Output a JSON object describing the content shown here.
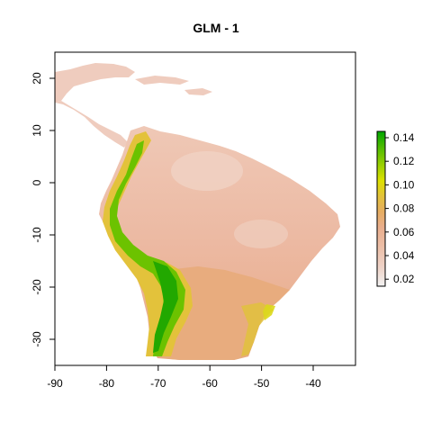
{
  "title": "GLM -  1",
  "map": {
    "x_ticks": [
      "-90",
      "-80",
      "-70",
      "-60",
      "-50",
      "-40"
    ],
    "y_ticks": [
      "20",
      "10",
      "0",
      "-10",
      "-20",
      "-30"
    ],
    "xlim": [
      -90,
      -32
    ],
    "ylim": [
      -35,
      25
    ],
    "background": "#ffffff",
    "ocean": "white",
    "land_low_color": "#ecb9a2",
    "land_mid_color": "#ebb089",
    "land_high_color": "#1fa800"
  },
  "legend": {
    "ticks": [
      "0.14",
      "0.12",
      "0.10",
      "0.08",
      "0.06",
      "0.04",
      "0.02"
    ],
    "range": [
      0.011,
      0.147
    ],
    "colors": [
      "#f2f2f2",
      "#eed3c8",
      "#ecbfa8",
      "#e9ae8d",
      "#e6ad62",
      "#e3c23b",
      "#dde000",
      "#9cd000",
      "#4cba00",
      "#00a600"
    ]
  }
}
